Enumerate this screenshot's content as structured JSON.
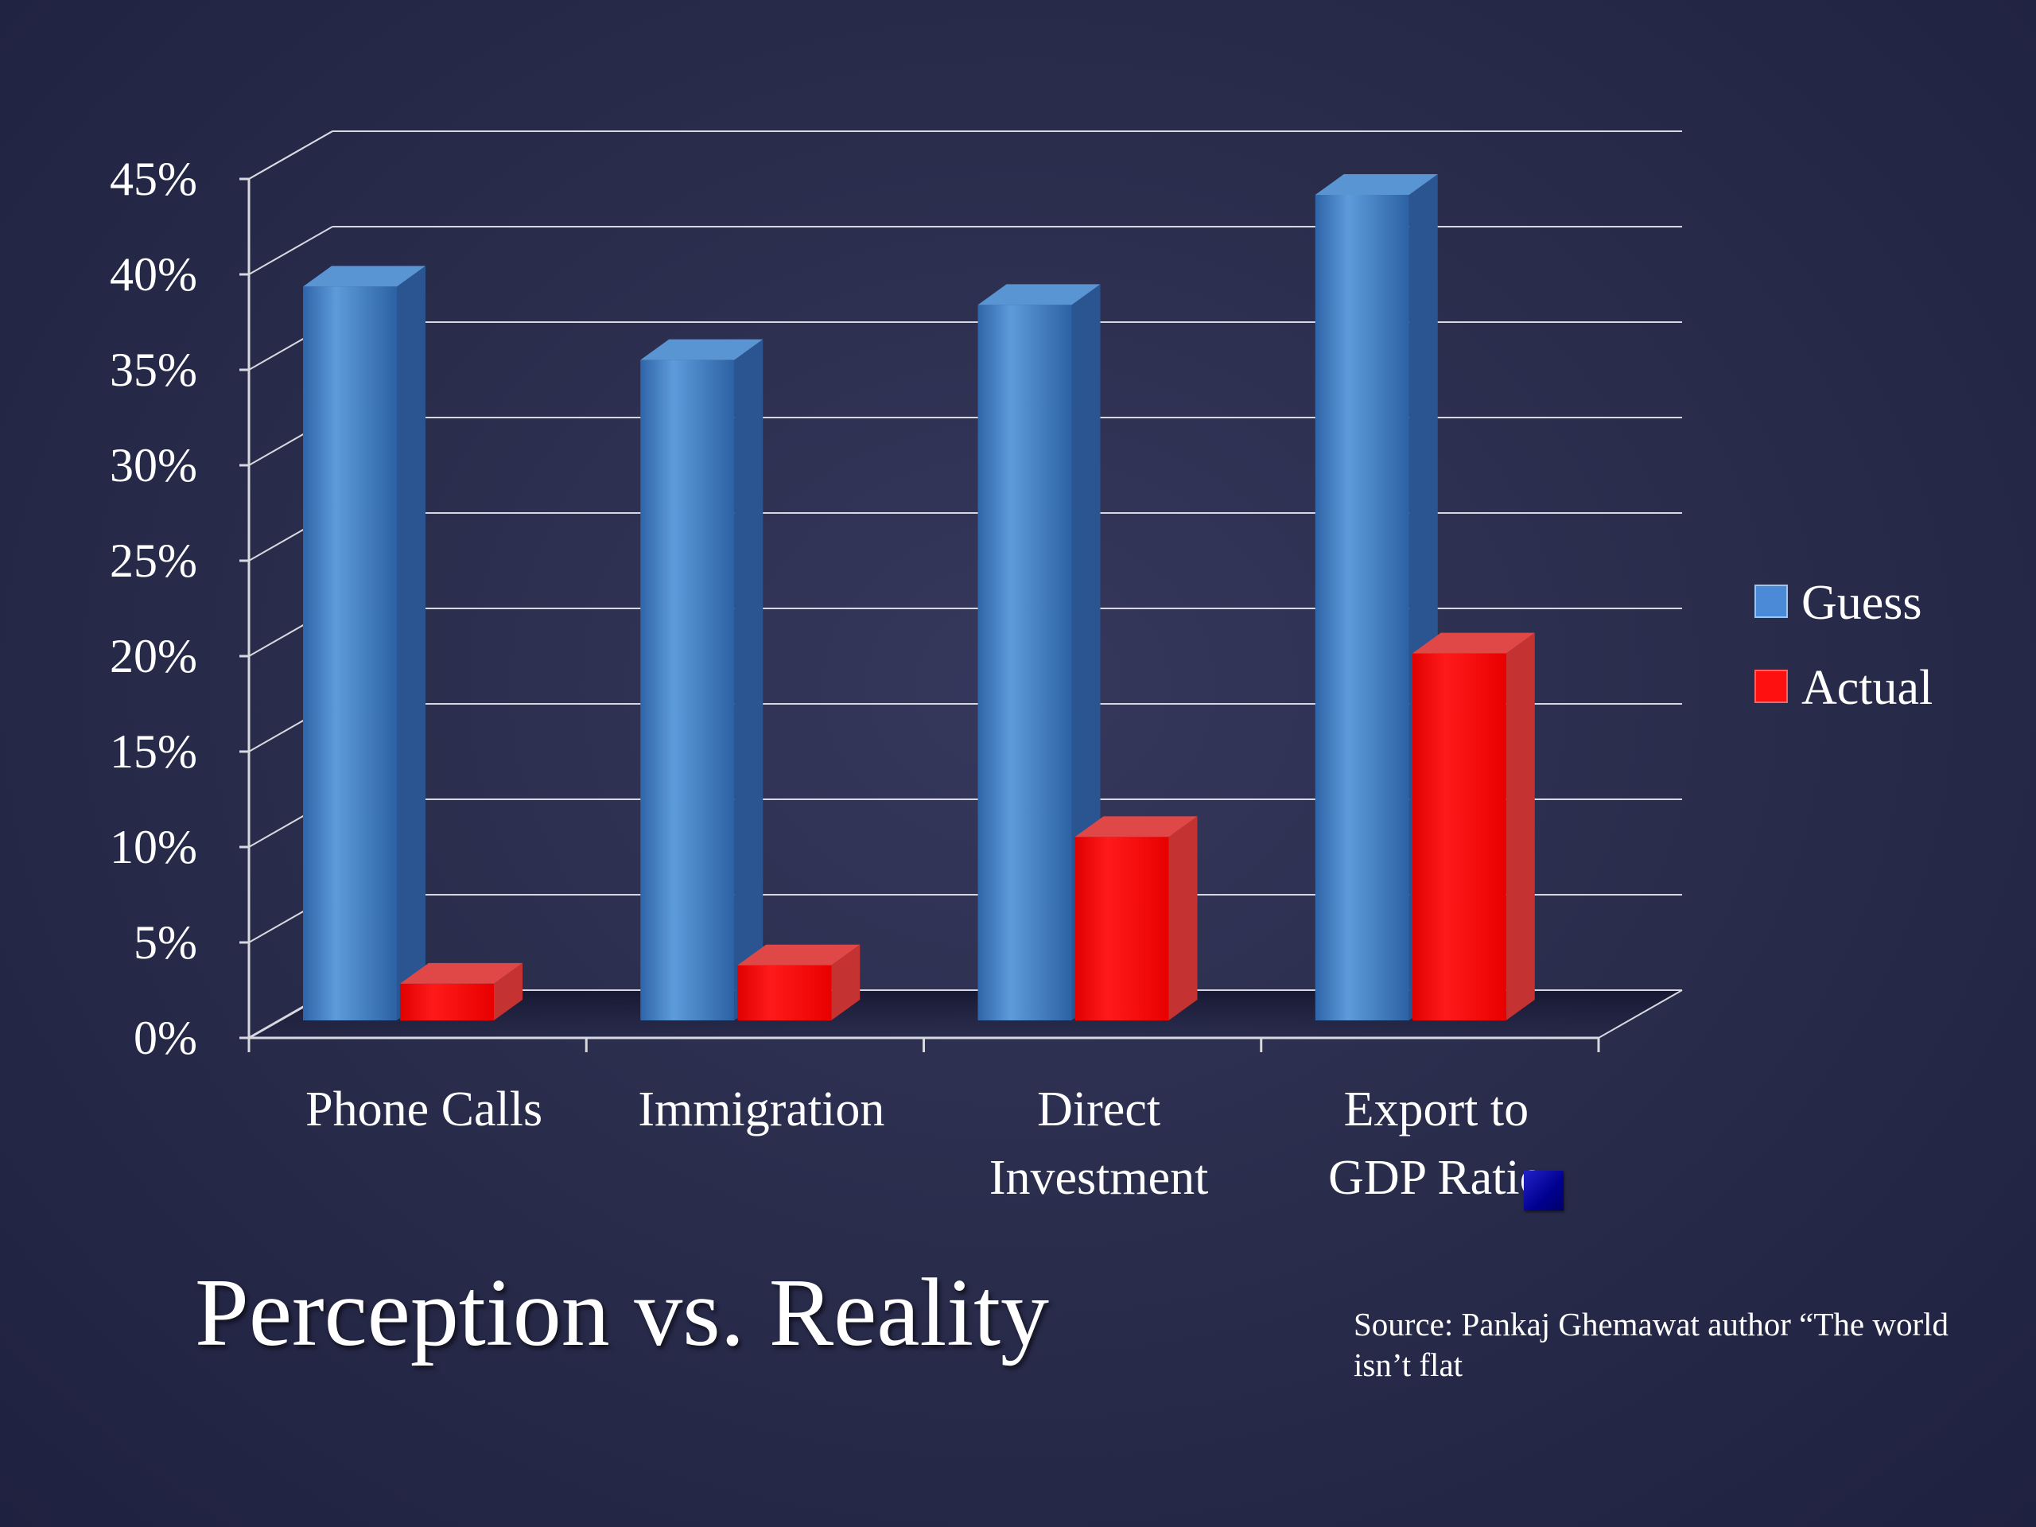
{
  "slide": {
    "title": "Perception vs. Reality",
    "source": "Source: Pankaj Ghemawat author “The world isn’t flat"
  },
  "chart_data": {
    "type": "bar",
    "categories": [
      [
        "Phone Calls"
      ],
      [
        "Immigration"
      ],
      [
        "Direct",
        "Investment"
      ],
      [
        "Export to",
        "GDP Ratio"
      ]
    ],
    "series": [
      {
        "name": "Guess",
        "values": [
          40,
          36,
          39,
          45
        ],
        "color": "#3a78c0"
      },
      {
        "name": "Actual",
        "values": [
          2,
          3,
          10,
          20
        ],
        "color": "#ff0000"
      }
    ],
    "y_ticks": [
      "0%",
      "5%",
      "10%",
      "15%",
      "20%",
      "25%",
      "30%",
      "35%",
      "40%",
      "45%"
    ],
    "ylim": [
      0,
      45
    ],
    "grid": true,
    "legend_position": "right",
    "style": "3d-column"
  },
  "colors": {
    "background": "#2b2d4d",
    "grid": "#d8d8e0",
    "marker": "#0000a0"
  }
}
